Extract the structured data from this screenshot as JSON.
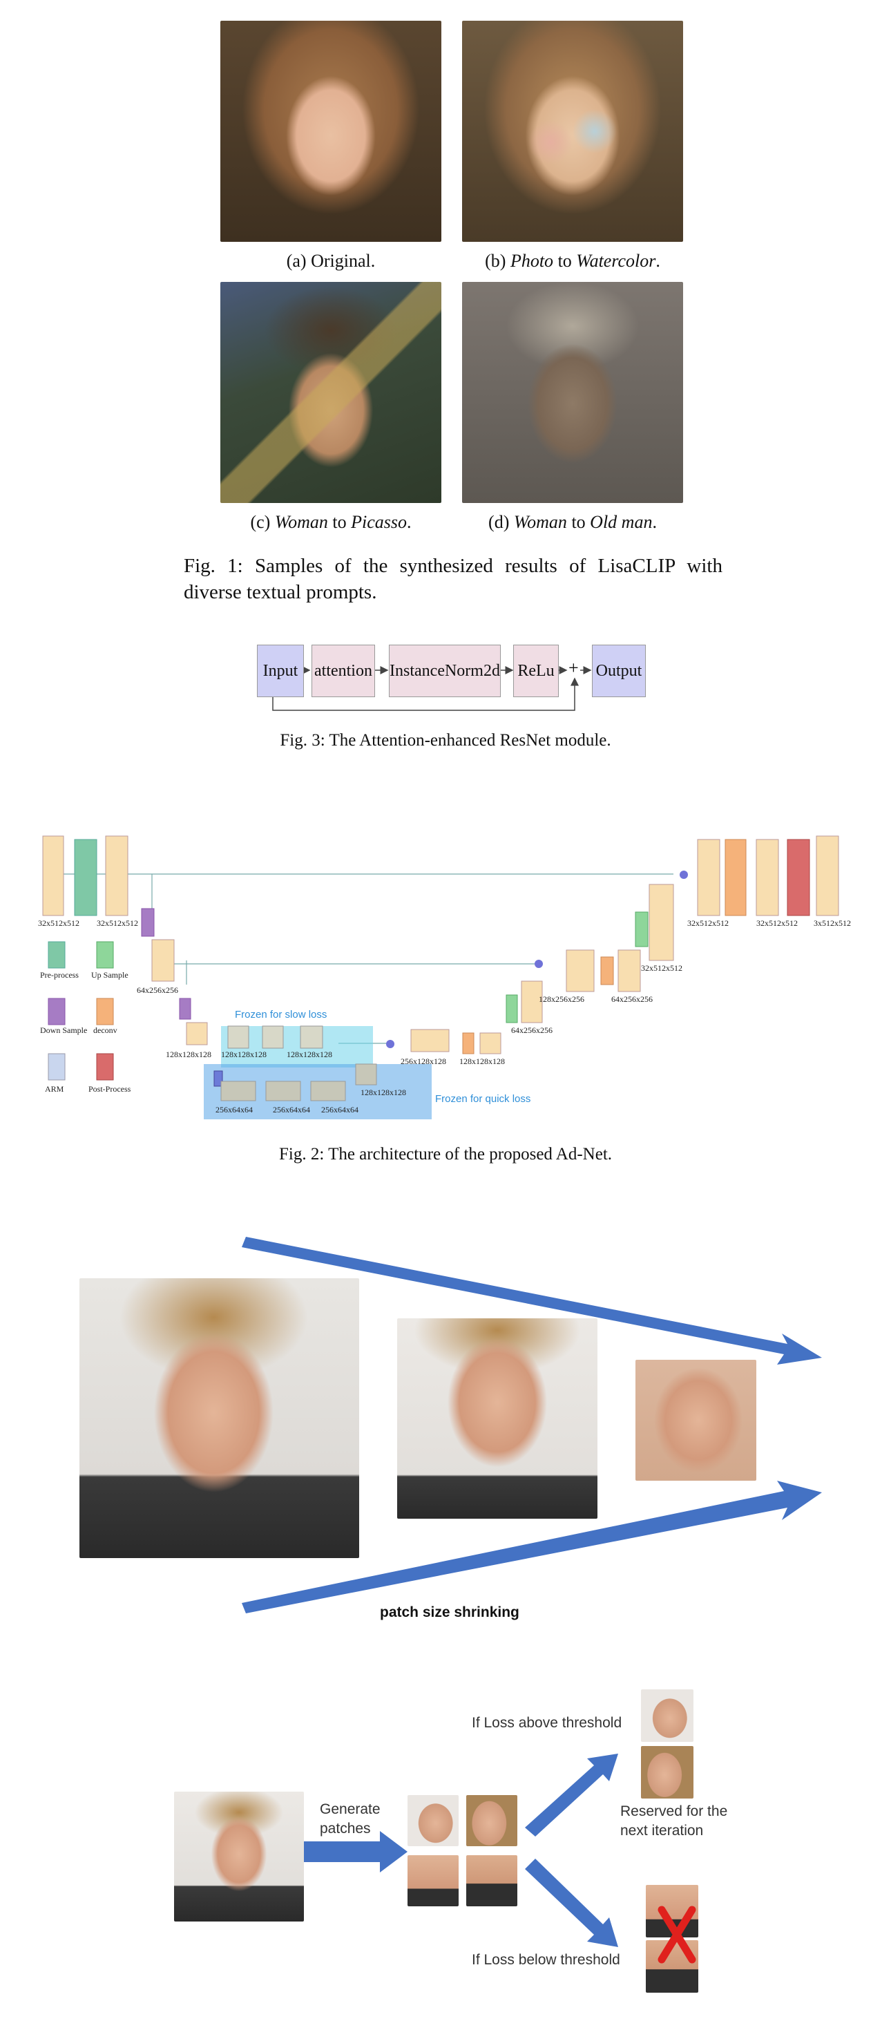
{
  "figure1": {
    "captions": {
      "a": "(a) Original.",
      "b_pre": "(b) ",
      "b_src": "Photo",
      "b_mid": " to ",
      "b_tgt": "Watercolor",
      "b_end": ".",
      "c_pre": "(c) ",
      "c_src": "Woman",
      "c_mid": " to ",
      "c_tgt": "Picasso",
      "c_end": ".",
      "d_pre": "(d) ",
      "d_src": "Woman",
      "d_mid": " to ",
      "d_tgt": "Old man",
      "d_end": "."
    },
    "caption_line1": "Fig. 1: Samples of the synthesized results of LisaCLIP with",
    "caption_line2": "diverse textual prompts."
  },
  "figure3": {
    "blocks": [
      "Input",
      "attention",
      "InstanceNorm2d",
      "ReLu",
      "+",
      "Output"
    ],
    "caption": "Fig. 3: The Attention-enhanced ResNet module."
  },
  "figure2": {
    "dims": {
      "d1": "32x512x512",
      "d2": "32x512x512",
      "d3": "64x256x256",
      "d4": "128x128x128",
      "d5": "128x128x128",
      "d6": "128x128x128",
      "d7": "256x64x64",
      "d8": "256x64x64",
      "d9": "256x64x64",
      "d10": "128x128x128",
      "d11": "256x128x128",
      "d12": "128x128x128",
      "d13": "64x256x256",
      "d14": "128x256x256",
      "d15": "64x256x256",
      "d16": "32x512x512",
      "d17": "32x512x512",
      "d18": "32x512x512",
      "d19": "3x512x512"
    },
    "frozen_slow": "Frozen for slow loss",
    "frozen_quick": "Frozen for quick loss",
    "legend": {
      "pre": "Pre-process",
      "up": "Up Sample",
      "down": "Down Sample",
      "deconv": "deconv",
      "arm": "ARM",
      "post": "Post-Process"
    },
    "caption": "Fig. 2: The architecture of the proposed Ad-Net."
  },
  "figure4": {
    "label": "patch size shrinking"
  },
  "figure5": {
    "generate": "Generate patches",
    "above": "If Loss above threshold",
    "reserved": "Reserved for the next iteration",
    "below": "If Loss below threshold"
  }
}
